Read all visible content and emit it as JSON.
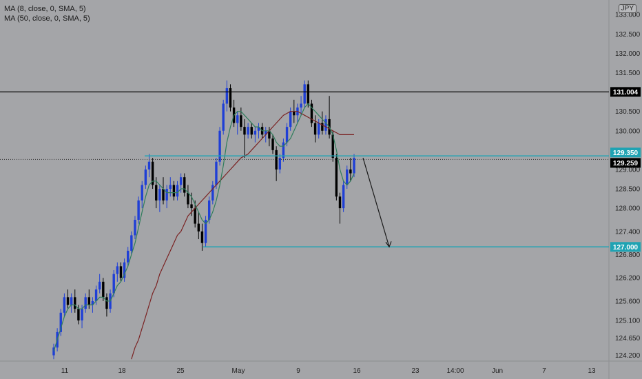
{
  "legend": {
    "ma_fast": "MA (8, close, 0, SMA, 5)",
    "ma_slow": "MA (50, close, 0, SMA, 5)"
  },
  "currency": "JPY",
  "colors": {
    "background": "#a4a5a8",
    "bull_candle": "#1f3fd6",
    "bear_candle": "#000000",
    "ma_fast": "#2e7d5b",
    "ma_slow": "#7a2222",
    "teal_level": "#1fa3b3",
    "black_level": "#000000"
  },
  "chart_data": {
    "type": "candlestick",
    "ylim": [
      124.05,
      133.2
    ],
    "y_ticks": [
      133.0,
      132.5,
      132.0,
      131.5,
      131.0,
      130.5,
      130.0,
      129.5,
      129.0,
      128.5,
      128.0,
      127.4,
      126.8,
      126.2,
      125.6,
      125.1,
      124.65,
      124.2
    ],
    "y_tick_labels": [
      "133.000",
      "132.500",
      "132.000",
      "131.500",
      "131.000",
      "130.500",
      "130.000",
      "129.500",
      "129.000",
      "128.500",
      "128.000",
      "127.400",
      "126.800",
      "126.200",
      "125.600",
      "125.100",
      "124.650",
      "124.200"
    ],
    "x_ticks": [
      "11",
      "18",
      "25",
      "May",
      "9",
      "16",
      "23",
      "14:00",
      "Jun",
      "7",
      "13"
    ],
    "price_tags": [
      {
        "value": "131.004",
        "style": "black"
      },
      {
        "value": "129.350",
        "style": "teal"
      },
      {
        "value": "129.259",
        "style": "black"
      },
      {
        "value": "127.000",
        "style": "teal"
      }
    ],
    "levels": [
      {
        "price": 131.004,
        "name": "resistance"
      },
      {
        "price": 129.35,
        "name": "teal-resistance"
      },
      {
        "price": 129.259,
        "name": "current-price"
      },
      {
        "price": 127.0,
        "name": "target"
      }
    ],
    "projection": {
      "from_price": 129.3,
      "to_price": 127.0
    },
    "ohlc_series": [
      [
        124.2,
        124.5,
        124.1,
        124.4
      ],
      [
        124.4,
        124.9,
        124.3,
        124.8
      ],
      [
        124.8,
        125.4,
        124.7,
        125.3
      ],
      [
        125.3,
        125.8,
        125.2,
        125.7
      ],
      [
        125.7,
        125.9,
        125.4,
        125.5
      ],
      [
        125.5,
        125.8,
        125.3,
        125.7
      ],
      [
        125.7,
        125.9,
        125.3,
        125.4
      ],
      [
        125.4,
        125.5,
        125.0,
        125.1
      ],
      [
        125.1,
        125.5,
        124.9,
        125.4
      ],
      [
        125.4,
        125.8,
        125.3,
        125.7
      ],
      [
        125.7,
        125.9,
        125.4,
        125.5
      ],
      [
        125.5,
        125.7,
        125.3,
        125.6
      ],
      [
        125.6,
        126.0,
        125.5,
        125.9
      ],
      [
        125.9,
        126.3,
        125.8,
        126.1
      ],
      [
        126.1,
        126.2,
        125.6,
        125.7
      ],
      [
        125.7,
        125.8,
        125.2,
        125.4
      ],
      [
        125.4,
        125.9,
        125.3,
        125.8
      ],
      [
        125.8,
        126.4,
        125.7,
        126.3
      ],
      [
        126.3,
        126.6,
        126.1,
        126.5
      ],
      [
        126.5,
        126.6,
        126.1,
        126.2
      ],
      [
        126.2,
        126.7,
        126.1,
        126.6
      ],
      [
        126.6,
        127.0,
        126.5,
        126.9
      ],
      [
        126.9,
        127.4,
        126.8,
        127.3
      ],
      [
        127.3,
        127.8,
        127.2,
        127.7
      ],
      [
        127.7,
        128.3,
        127.6,
        128.2
      ],
      [
        128.2,
        128.7,
        128.0,
        128.6
      ],
      [
        128.6,
        129.1,
        128.5,
        129.0
      ],
      [
        129.0,
        129.4,
        128.8,
        129.2
      ],
      [
        129.2,
        129.3,
        128.5,
        128.6
      ],
      [
        128.6,
        128.8,
        128.0,
        128.2
      ],
      [
        128.2,
        128.6,
        127.9,
        128.5
      ],
      [
        128.5,
        128.8,
        128.1,
        128.2
      ],
      [
        128.2,
        128.6,
        128.0,
        128.5
      ],
      [
        128.5,
        128.8,
        128.3,
        128.6
      ],
      [
        128.6,
        128.7,
        128.2,
        128.3
      ],
      [
        128.3,
        128.7,
        128.2,
        128.6
      ],
      [
        128.6,
        128.9,
        128.4,
        128.8
      ],
      [
        128.8,
        128.9,
        128.3,
        128.4
      ],
      [
        128.4,
        128.6,
        128.0,
        128.1
      ],
      [
        128.1,
        128.4,
        127.8,
        128.0
      ],
      [
        128.0,
        128.2,
        127.5,
        127.6
      ],
      [
        127.6,
        127.9,
        127.2,
        127.4
      ],
      [
        127.4,
        127.6,
        126.9,
        127.1
      ],
      [
        127.1,
        127.8,
        127.0,
        127.7
      ],
      [
        127.7,
        128.3,
        127.6,
        128.2
      ],
      [
        128.2,
        128.7,
        128.1,
        128.6
      ],
      [
        128.6,
        129.3,
        128.5,
        129.2
      ],
      [
        129.2,
        130.1,
        129.1,
        130.0
      ],
      [
        130.0,
        130.8,
        129.9,
        130.7
      ],
      [
        130.7,
        131.3,
        130.5,
        131.1
      ],
      [
        131.1,
        131.2,
        130.5,
        130.6
      ],
      [
        130.6,
        130.8,
        130.1,
        130.2
      ],
      [
        130.2,
        130.5,
        129.9,
        130.4
      ],
      [
        130.4,
        130.6,
        130.0,
        130.1
      ],
      [
        130.1,
        130.3,
        129.3,
        129.9
      ],
      [
        129.9,
        130.2,
        129.8,
        130.1
      ],
      [
        130.1,
        130.2,
        129.8,
        129.9
      ],
      [
        129.9,
        130.1,
        129.7,
        130.0
      ],
      [
        130.0,
        130.2,
        129.8,
        130.1
      ],
      [
        130.1,
        130.2,
        129.8,
        129.9
      ],
      [
        129.9,
        130.1,
        129.7,
        130.0
      ],
      [
        130.0,
        130.1,
        129.6,
        129.8
      ],
      [
        129.8,
        129.9,
        129.4,
        129.5
      ],
      [
        129.5,
        129.6,
        128.7,
        129.0
      ],
      [
        129.0,
        129.4,
        128.9,
        129.3
      ],
      [
        129.3,
        129.8,
        129.2,
        129.7
      ],
      [
        129.7,
        130.2,
        129.6,
        130.1
      ],
      [
        130.1,
        130.6,
        130.0,
        130.5
      ],
      [
        130.5,
        130.8,
        130.2,
        130.4
      ],
      [
        130.4,
        130.7,
        130.2,
        130.6
      ],
      [
        130.6,
        130.9,
        130.4,
        130.7
      ],
      [
        130.7,
        131.3,
        130.6,
        131.2
      ],
      [
        131.2,
        131.3,
        130.6,
        130.7
      ],
      [
        130.7,
        130.8,
        130.1,
        130.2
      ],
      [
        130.2,
        130.4,
        129.7,
        129.9
      ],
      [
        129.9,
        130.3,
        129.8,
        130.2
      ],
      [
        130.2,
        130.5,
        129.9,
        130.0
      ],
      [
        130.0,
        130.4,
        129.9,
        130.3
      ],
      [
        130.3,
        130.9,
        129.8,
        129.9
      ],
      [
        129.9,
        130.0,
        129.2,
        129.3
      ],
      [
        129.3,
        129.4,
        128.2,
        128.3
      ],
      [
        128.3,
        128.4,
        127.6,
        128.0
      ],
      [
        128.0,
        128.7,
        127.9,
        128.6
      ],
      [
        128.6,
        129.1,
        128.5,
        129.0
      ],
      [
        129.0,
        129.3,
        128.7,
        128.9
      ],
      [
        128.9,
        129.4,
        128.8,
        129.3
      ]
    ],
    "ma_fast_values": [
      124.3,
      124.6,
      124.9,
      125.2,
      125.4,
      125.5,
      125.5,
      125.4,
      125.4,
      125.5,
      125.5,
      125.5,
      125.6,
      125.7,
      125.7,
      125.6,
      125.6,
      125.8,
      126.0,
      126.1,
      126.3,
      126.5,
      126.8,
      127.1,
      127.5,
      127.9,
      128.3,
      128.6,
      128.7,
      128.7,
      128.6,
      128.5,
      128.4,
      128.4,
      128.4,
      128.4,
      128.5,
      128.5,
      128.4,
      128.3,
      128.1,
      127.9,
      127.7,
      127.6,
      127.7,
      127.9,
      128.2,
      128.6,
      129.1,
      129.7,
      130.1,
      130.4,
      130.5,
      130.5,
      130.4,
      130.3,
      130.2,
      130.1,
      130.1,
      130.0,
      130.0,
      130.0,
      129.9,
      129.7,
      129.6,
      129.6,
      129.7,
      129.8,
      130.0,
      130.2,
      130.4,
      130.6,
      130.7,
      130.6,
      130.5,
      130.4,
      130.3,
      130.2,
      130.1,
      129.9,
      129.5,
      129.0,
      128.7,
      128.6,
      128.7,
      128.9
    ],
    "ma_slow_values": [
      null,
      null,
      null,
      null,
      null,
      null,
      null,
      null,
      null,
      null,
      null,
      null,
      null,
      null,
      null,
      null,
      null,
      null,
      null,
      null,
      null,
      null,
      124.1,
      124.4,
      124.6,
      124.9,
      125.2,
      125.5,
      125.8,
      126.0,
      126.3,
      126.5,
      126.7,
      126.9,
      127.1,
      127.3,
      127.4,
      127.6,
      127.8,
      127.9,
      128.0,
      128.1,
      128.2,
      128.3,
      128.4,
      128.5,
      128.6,
      128.7,
      128.8,
      128.9,
      129.0,
      129.1,
      129.2,
      129.3,
      129.35,
      129.4,
      129.5,
      129.6,
      129.7,
      129.8,
      129.9,
      130.0,
      130.1,
      130.2,
      130.3,
      130.4,
      130.45,
      130.5,
      130.5,
      130.5,
      130.45,
      130.4,
      130.35,
      130.3,
      130.25,
      130.2,
      130.15,
      130.1,
      130.05,
      130.0,
      129.95,
      129.9,
      129.9,
      129.9,
      129.9,
      129.9
    ]
  }
}
